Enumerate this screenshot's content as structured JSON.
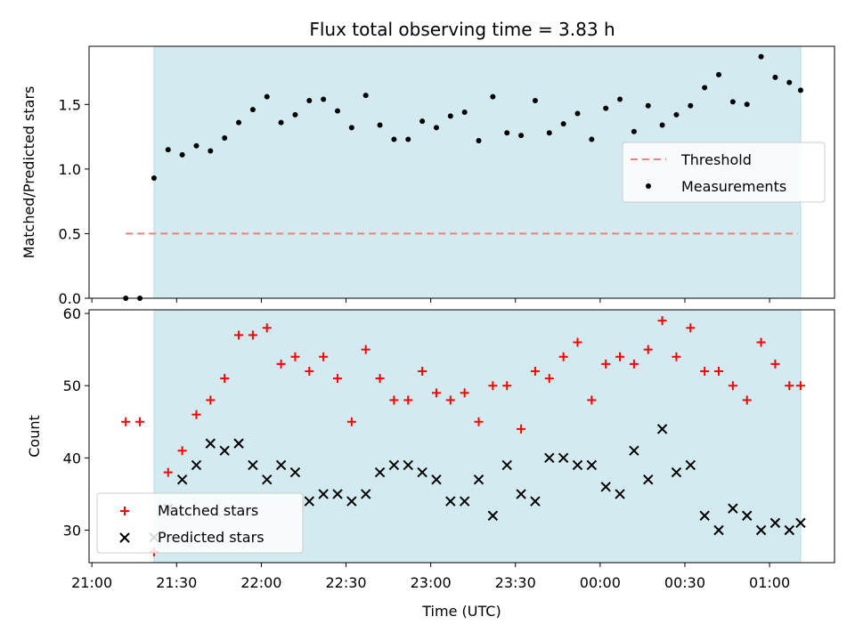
{
  "title": "Flux total observing time = 3.83 h",
  "colors": {
    "observing_band": "#d3eaf0",
    "threshold": "#f08080",
    "measurements": "#000000",
    "matched": "#ff0000",
    "predicted": "#000000"
  },
  "chart_data": [
    {
      "type": "scatter",
      "name": "ratio",
      "ylabel": "Matched/Predicted stars",
      "ylim": [
        0,
        1.95
      ],
      "yticks": [
        "0.0",
        "0.5",
        "1.0",
        "1.5"
      ],
      "yticks_values": [
        0,
        0.5,
        1.0,
        1.5
      ],
      "legend": {
        "placement": "center-right",
        "entries": [
          "Threshold",
          "Measurements"
        ]
      },
      "threshold": {
        "label": "Threshold",
        "value": 0.5,
        "x_range": [
          "21:12",
          "01:10"
        ]
      },
      "observing_window": [
        "21:22",
        "01:11"
      ],
      "series": [
        {
          "label": "Measurements",
          "x": [
            "21:12",
            "21:17",
            "21:22",
            "21:27",
            "21:32",
            "21:37",
            "21:42",
            "21:47",
            "21:52",
            "21:57",
            "22:02",
            "22:07",
            "22:12",
            "22:17",
            "22:22",
            "22:27",
            "22:32",
            "22:37",
            "22:42",
            "22:47",
            "22:52",
            "22:57",
            "23:02",
            "23:07",
            "23:12",
            "23:17",
            "23:22",
            "23:27",
            "23:32",
            "23:37",
            "23:42",
            "23:47",
            "23:52",
            "23:57",
            "00:02",
            "00:07",
            "00:12",
            "00:17",
            "00:22",
            "00:27",
            "00:32",
            "00:37",
            "00:42",
            "00:47",
            "00:52",
            "00:57",
            "01:02",
            "01:07",
            "01:11"
          ],
          "y": [
            0.0,
            0.0,
            0.93,
            1.15,
            1.11,
            1.18,
            1.14,
            1.24,
            1.36,
            1.46,
            1.56,
            1.36,
            1.42,
            1.53,
            1.54,
            1.45,
            1.32,
            1.57,
            1.34,
            1.23,
            1.23,
            1.37,
            1.32,
            1.41,
            1.44,
            1.22,
            1.56,
            1.28,
            1.26,
            1.53,
            1.28,
            1.35,
            1.43,
            1.23,
            1.47,
            1.54,
            1.29,
            1.49,
            1.34,
            1.42,
            1.49,
            1.63,
            1.73,
            1.52,
            1.5,
            1.87,
            1.71,
            1.67,
            1.61
          ]
        }
      ]
    },
    {
      "type": "scatter",
      "name": "counts",
      "ylabel": "Count",
      "xlabel": "Time (UTC)",
      "ylim": [
        25.5,
        60.5
      ],
      "yticks": [
        "30",
        "40",
        "50",
        "60"
      ],
      "yticks_values": [
        30,
        40,
        50,
        60
      ],
      "xticks": [
        "21:00",
        "21:30",
        "22:00",
        "22:30",
        "23:00",
        "23:30",
        "00:00",
        "00:30",
        "01:00"
      ],
      "x_range": [
        "20:59",
        "01:23"
      ],
      "legend": {
        "placement": "lower-left",
        "entries": [
          "Matched stars",
          "Predicted stars"
        ]
      },
      "series": [
        {
          "label": "Matched stars",
          "x": [
            "21:12",
            "21:17",
            "21:22",
            "21:27",
            "21:32",
            "21:37",
            "21:42",
            "21:47",
            "21:52",
            "21:57",
            "22:02",
            "22:07",
            "22:12",
            "22:17",
            "22:22",
            "22:27",
            "22:32",
            "22:37",
            "22:42",
            "22:47",
            "22:52",
            "22:57",
            "23:02",
            "23:07",
            "23:12",
            "23:17",
            "23:22",
            "23:27",
            "23:32",
            "23:37",
            "23:42",
            "23:47",
            "23:52",
            "23:57",
            "00:02",
            "00:07",
            "00:12",
            "00:17",
            "00:22",
            "00:27",
            "00:32",
            "00:37",
            "00:42",
            "00:47",
            "00:52",
            "00:57",
            "01:02",
            "01:07",
            "01:11"
          ],
          "y": [
            45,
            45,
            27,
            38,
            41,
            46,
            48,
            51,
            57,
            57,
            58,
            53,
            54,
            52,
            54,
            51,
            45,
            55,
            51,
            48,
            48,
            52,
            49,
            48,
            49,
            45,
            50,
            50,
            44,
            52,
            51,
            54,
            56,
            48,
            53,
            54,
            53,
            55,
            59,
            54,
            58,
            52,
            52,
            50,
            48,
            56,
            53,
            50,
            50
          ]
        },
        {
          "label": "Predicted stars",
          "x": [
            "21:22",
            "21:27",
            "21:32",
            "21:37",
            "21:42",
            "21:47",
            "21:52",
            "21:57",
            "22:02",
            "22:07",
            "22:12",
            "22:17",
            "22:22",
            "22:27",
            "22:32",
            "22:37",
            "22:42",
            "22:47",
            "22:52",
            "22:57",
            "23:02",
            "23:07",
            "23:12",
            "23:17",
            "23:22",
            "23:27",
            "23:32",
            "23:37",
            "23:42",
            "23:47",
            "23:52",
            "23:57",
            "00:02",
            "00:07",
            "00:12",
            "00:17",
            "00:22",
            "00:27",
            "00:32",
            "00:37",
            "00:42",
            "00:47",
            "00:52",
            "00:57",
            "01:02",
            "01:07",
            "01:11"
          ],
          "y": [
            29,
            33,
            37,
            39,
            42,
            41,
            42,
            39,
            37,
            39,
            38,
            34,
            35,
            35,
            34,
            35,
            38,
            39,
            39,
            38,
            37,
            34,
            34,
            37,
            32,
            39,
            35,
            34,
            40,
            40,
            39,
            39,
            36,
            35,
            41,
            37,
            44,
            38,
            39,
            32,
            30,
            33,
            32,
            30,
            31,
            30,
            31
          ]
        }
      ]
    }
  ]
}
